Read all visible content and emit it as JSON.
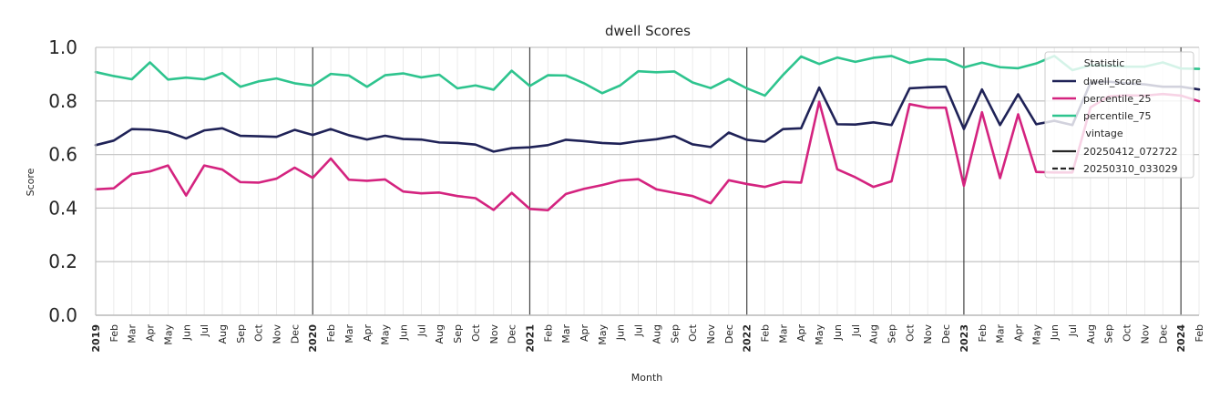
{
  "chart_data": {
    "type": "line",
    "title": "dwell Scores",
    "xlabel": "Month",
    "ylabel": "Score",
    "ylim": [
      0.0,
      1.0
    ],
    "yticks": [
      "0.0",
      "0.2",
      "0.4",
      "0.6",
      "0.8",
      "1.0"
    ],
    "xlim": [
      "2019-01",
      "2024-02"
    ],
    "grid": true,
    "legend_position": "top-right",
    "x": [
      "2019-01",
      "2019-02",
      "2019-03",
      "2019-04",
      "2019-05",
      "2019-06",
      "2019-07",
      "2019-08",
      "2019-09",
      "2019-10",
      "2019-11",
      "2019-12",
      "2020-01",
      "2020-02",
      "2020-03",
      "2020-04",
      "2020-05",
      "2020-06",
      "2020-07",
      "2020-08",
      "2020-09",
      "2020-10",
      "2020-11",
      "2020-12",
      "2021-01",
      "2021-02",
      "2021-03",
      "2021-04",
      "2021-05",
      "2021-06",
      "2021-07",
      "2021-08",
      "2021-09",
      "2021-10",
      "2021-11",
      "2021-12",
      "2022-01",
      "2022-02",
      "2022-03",
      "2022-04",
      "2022-05",
      "2022-06",
      "2022-07",
      "2022-08",
      "2022-09",
      "2022-10",
      "2022-11",
      "2022-12",
      "2023-01",
      "2023-02",
      "2023-03",
      "2023-04",
      "2023-05",
      "2023-06",
      "2023-07",
      "2023-08",
      "2023-09",
      "2023-10",
      "2023-11",
      "2023-12",
      "2024-01",
      "2024-02"
    ],
    "x_tick_labels": [
      "2019",
      "Feb",
      "Mar",
      "Apr",
      "May",
      "Jun",
      "Jul",
      "Aug",
      "Sep",
      "Oct",
      "Nov",
      "Dec",
      "2020",
      "Feb",
      "Mar",
      "Apr",
      "May",
      "Jun",
      "Jul",
      "Aug",
      "Sep",
      "Oct",
      "Nov",
      "Dec",
      "2021",
      "Feb",
      "Mar",
      "Apr",
      "May",
      "Jun",
      "Jul",
      "Aug",
      "Sep",
      "Oct",
      "Nov",
      "Dec",
      "2022",
      "Feb",
      "Mar",
      "Apr",
      "May",
      "Jun",
      "Jul",
      "Aug",
      "Sep",
      "Oct",
      "Nov",
      "Dec",
      "2023",
      "Feb",
      "Mar",
      "Apr",
      "May",
      "Jun",
      "Jul",
      "Aug",
      "Sep",
      "Oct",
      "Nov",
      "Dec",
      "2024",
      "Feb"
    ],
    "series": [
      {
        "name": "dwell_score",
        "vintage": "20250412_072722",
        "color": "#1f2257",
        "values": [
          0.635,
          0.652,
          0.695,
          0.693,
          0.684,
          0.66,
          0.69,
          0.698,
          0.67,
          0.668,
          0.666,
          0.692,
          0.673,
          0.695,
          0.672,
          0.656,
          0.67,
          0.658,
          0.656,
          0.645,
          0.643,
          0.637,
          0.611,
          0.624,
          0.627,
          0.635,
          0.655,
          0.65,
          0.643,
          0.64,
          0.65,
          0.657,
          0.669,
          0.638,
          0.628,
          0.682,
          0.655,
          0.648,
          0.695,
          0.698,
          0.85,
          0.713,
          0.712,
          0.72,
          0.71,
          0.847,
          0.851,
          0.853,
          0.695,
          0.843,
          0.71,
          0.825,
          0.713,
          0.726,
          0.71,
          0.868,
          0.872,
          0.866,
          0.862,
          0.853,
          0.853,
          0.843
        ]
      },
      {
        "name": "percentile_25",
        "vintage": "20250412_072722",
        "color": "#d4237f",
        "values": [
          0.47,
          0.474,
          0.527,
          0.537,
          0.559,
          0.447,
          0.559,
          0.544,
          0.497,
          0.495,
          0.51,
          0.551,
          0.513,
          0.585,
          0.506,
          0.502,
          0.507,
          0.462,
          0.455,
          0.458,
          0.445,
          0.437,
          0.393,
          0.457,
          0.397,
          0.392,
          0.453,
          0.472,
          0.486,
          0.503,
          0.508,
          0.47,
          0.457,
          0.445,
          0.418,
          0.504,
          0.49,
          0.479,
          0.498,
          0.495,
          0.797,
          0.545,
          0.515,
          0.479,
          0.5,
          0.788,
          0.775,
          0.775,
          0.483,
          0.758,
          0.512,
          0.75,
          0.535,
          0.533,
          0.533,
          0.776,
          0.817,
          0.821,
          0.82,
          0.826,
          0.82,
          0.799
        ]
      },
      {
        "name": "percentile_75",
        "vintage": "20250412_072722",
        "color": "#2ec48e",
        "values": [
          0.908,
          0.893,
          0.881,
          0.944,
          0.88,
          0.887,
          0.881,
          0.904,
          0.853,
          0.873,
          0.884,
          0.866,
          0.857,
          0.901,
          0.895,
          0.853,
          0.896,
          0.903,
          0.888,
          0.898,
          0.847,
          0.858,
          0.842,
          0.913,
          0.856,
          0.896,
          0.895,
          0.866,
          0.829,
          0.858,
          0.911,
          0.907,
          0.91,
          0.869,
          0.848,
          0.882,
          0.847,
          0.82,
          0.897,
          0.966,
          0.938,
          0.962,
          0.946,
          0.961,
          0.968,
          0.942,
          0.956,
          0.954,
          0.925,
          0.943,
          0.926,
          0.922,
          0.94,
          0.968,
          0.915,
          0.933,
          0.931,
          0.928,
          0.928,
          0.944,
          0.921,
          0.92
        ]
      }
    ],
    "legend": {
      "title_statistic": "Statistic",
      "items_statistic": [
        "dwell_score",
        "percentile_25",
        "percentile_75"
      ],
      "title_vintage": "vintage",
      "items_vintage": [
        "20250412_072722",
        "20250310_033029"
      ]
    }
  }
}
